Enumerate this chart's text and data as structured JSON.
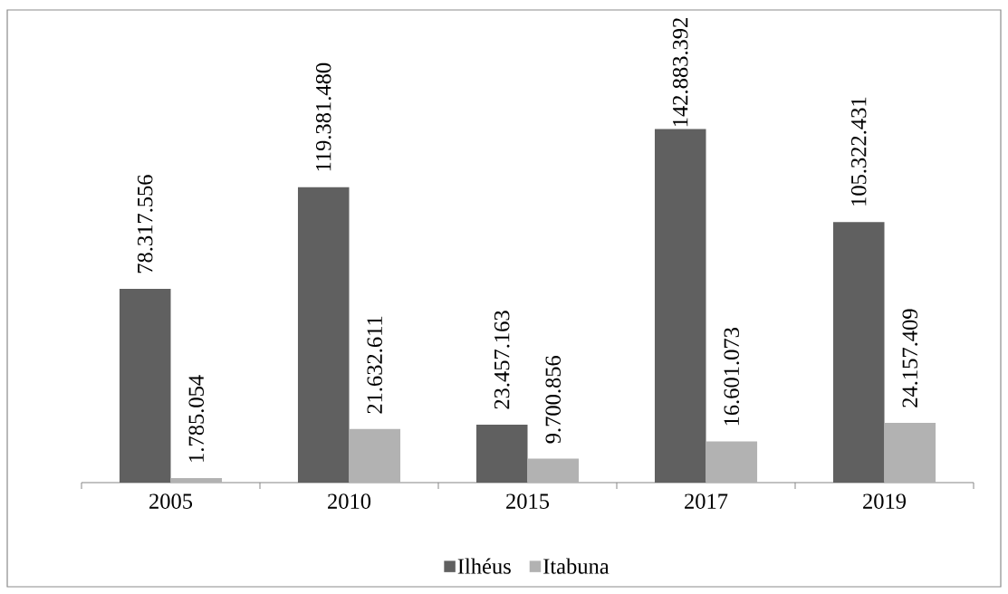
{
  "chart_data": {
    "type": "bar",
    "categories": [
      "2005",
      "2010",
      "2015",
      "2017",
      "2019"
    ],
    "series": [
      {
        "name": "Ilhéus",
        "color": "#606060",
        "values": [
          78317556,
          119381480,
          23457163,
          142883392,
          105322431
        ],
        "value_labels": [
          "78.317.556",
          "119.381.480",
          "23.457.163",
          "142.883.392",
          "105.322.431"
        ]
      },
      {
        "name": "Itabuna",
        "color": "#b2b2b2",
        "values": [
          1785054,
          21632611,
          9700856,
          16601073,
          24157409
        ],
        "value_labels": [
          "1.785.054",
          "21.632.611",
          "9.700.856",
          "16.601.073",
          "24.157.409"
        ]
      }
    ],
    "legend": "bottom"
  }
}
